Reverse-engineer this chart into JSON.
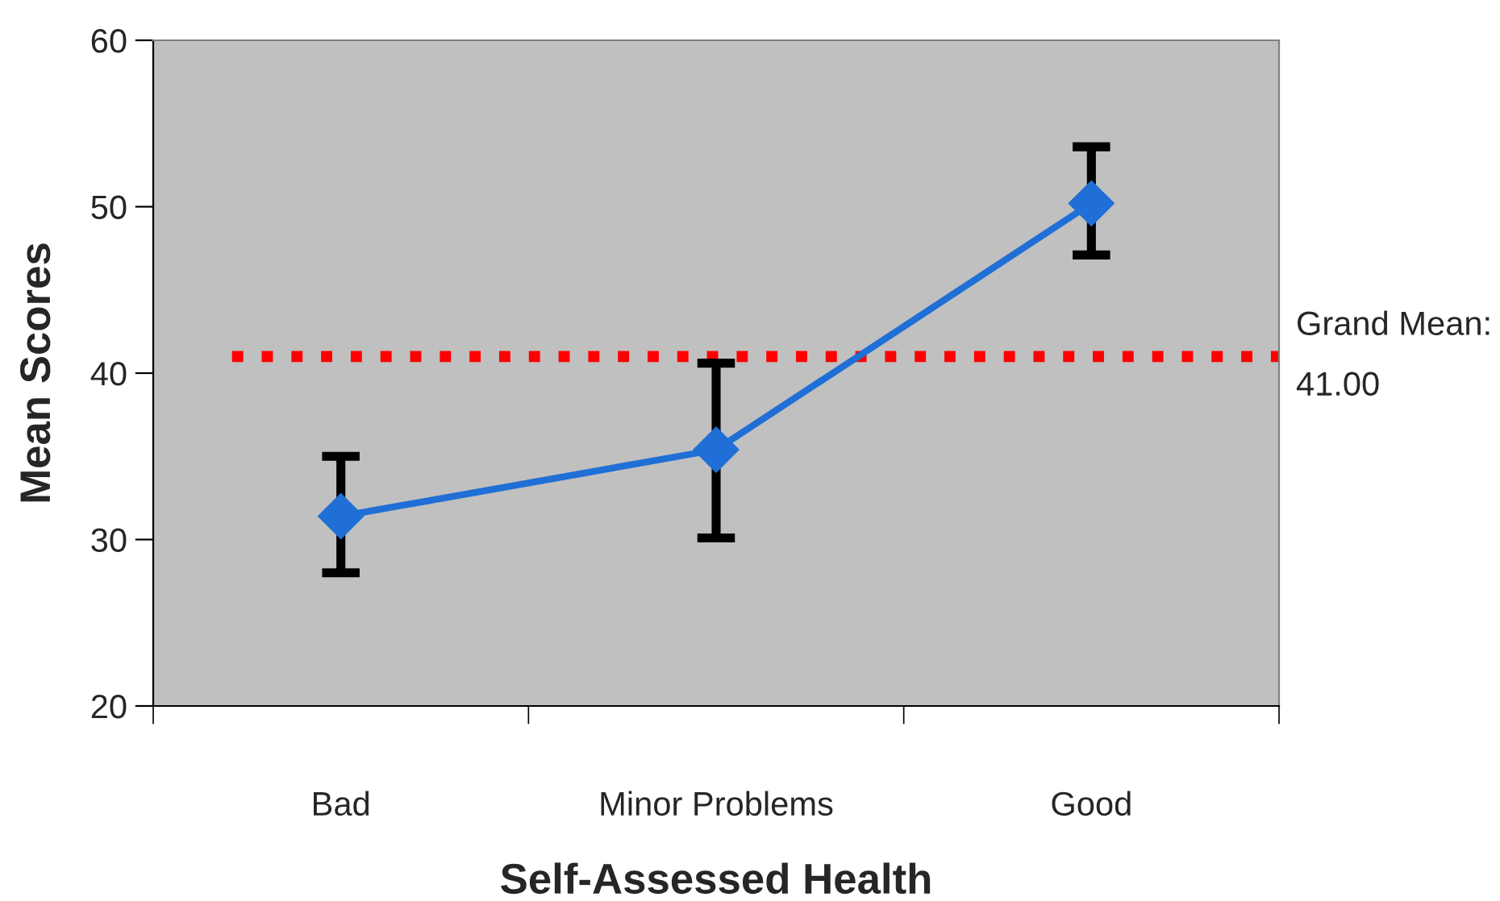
{
  "chart_data": {
    "type": "line",
    "xlabel": "Self-Assessed Health",
    "ylabel": "Mean Scores",
    "categories": [
      "Bad",
      "Minor Problems",
      "Good"
    ],
    "series": [
      {
        "color": "#1f6fd6",
        "values": [
          31.4,
          35.4,
          50.2
        ],
        "errors": [
          [
            28.0,
            35.0
          ],
          [
            30.1,
            40.6
          ],
          [
            47.1,
            53.6
          ]
        ]
      }
    ],
    "ylim": [
      20,
      60
    ],
    "yticks": [
      20,
      30,
      40,
      50,
      60
    ],
    "ref_lines": [
      {
        "axis": "y",
        "value": 41.0,
        "label": "Grand Mean:\n41.00",
        "color": "#ff0000",
        "line_style": "dotted"
      }
    ],
    "marker": "diamond",
    "line_style": "solid",
    "grid": false,
    "legend": false
  }
}
